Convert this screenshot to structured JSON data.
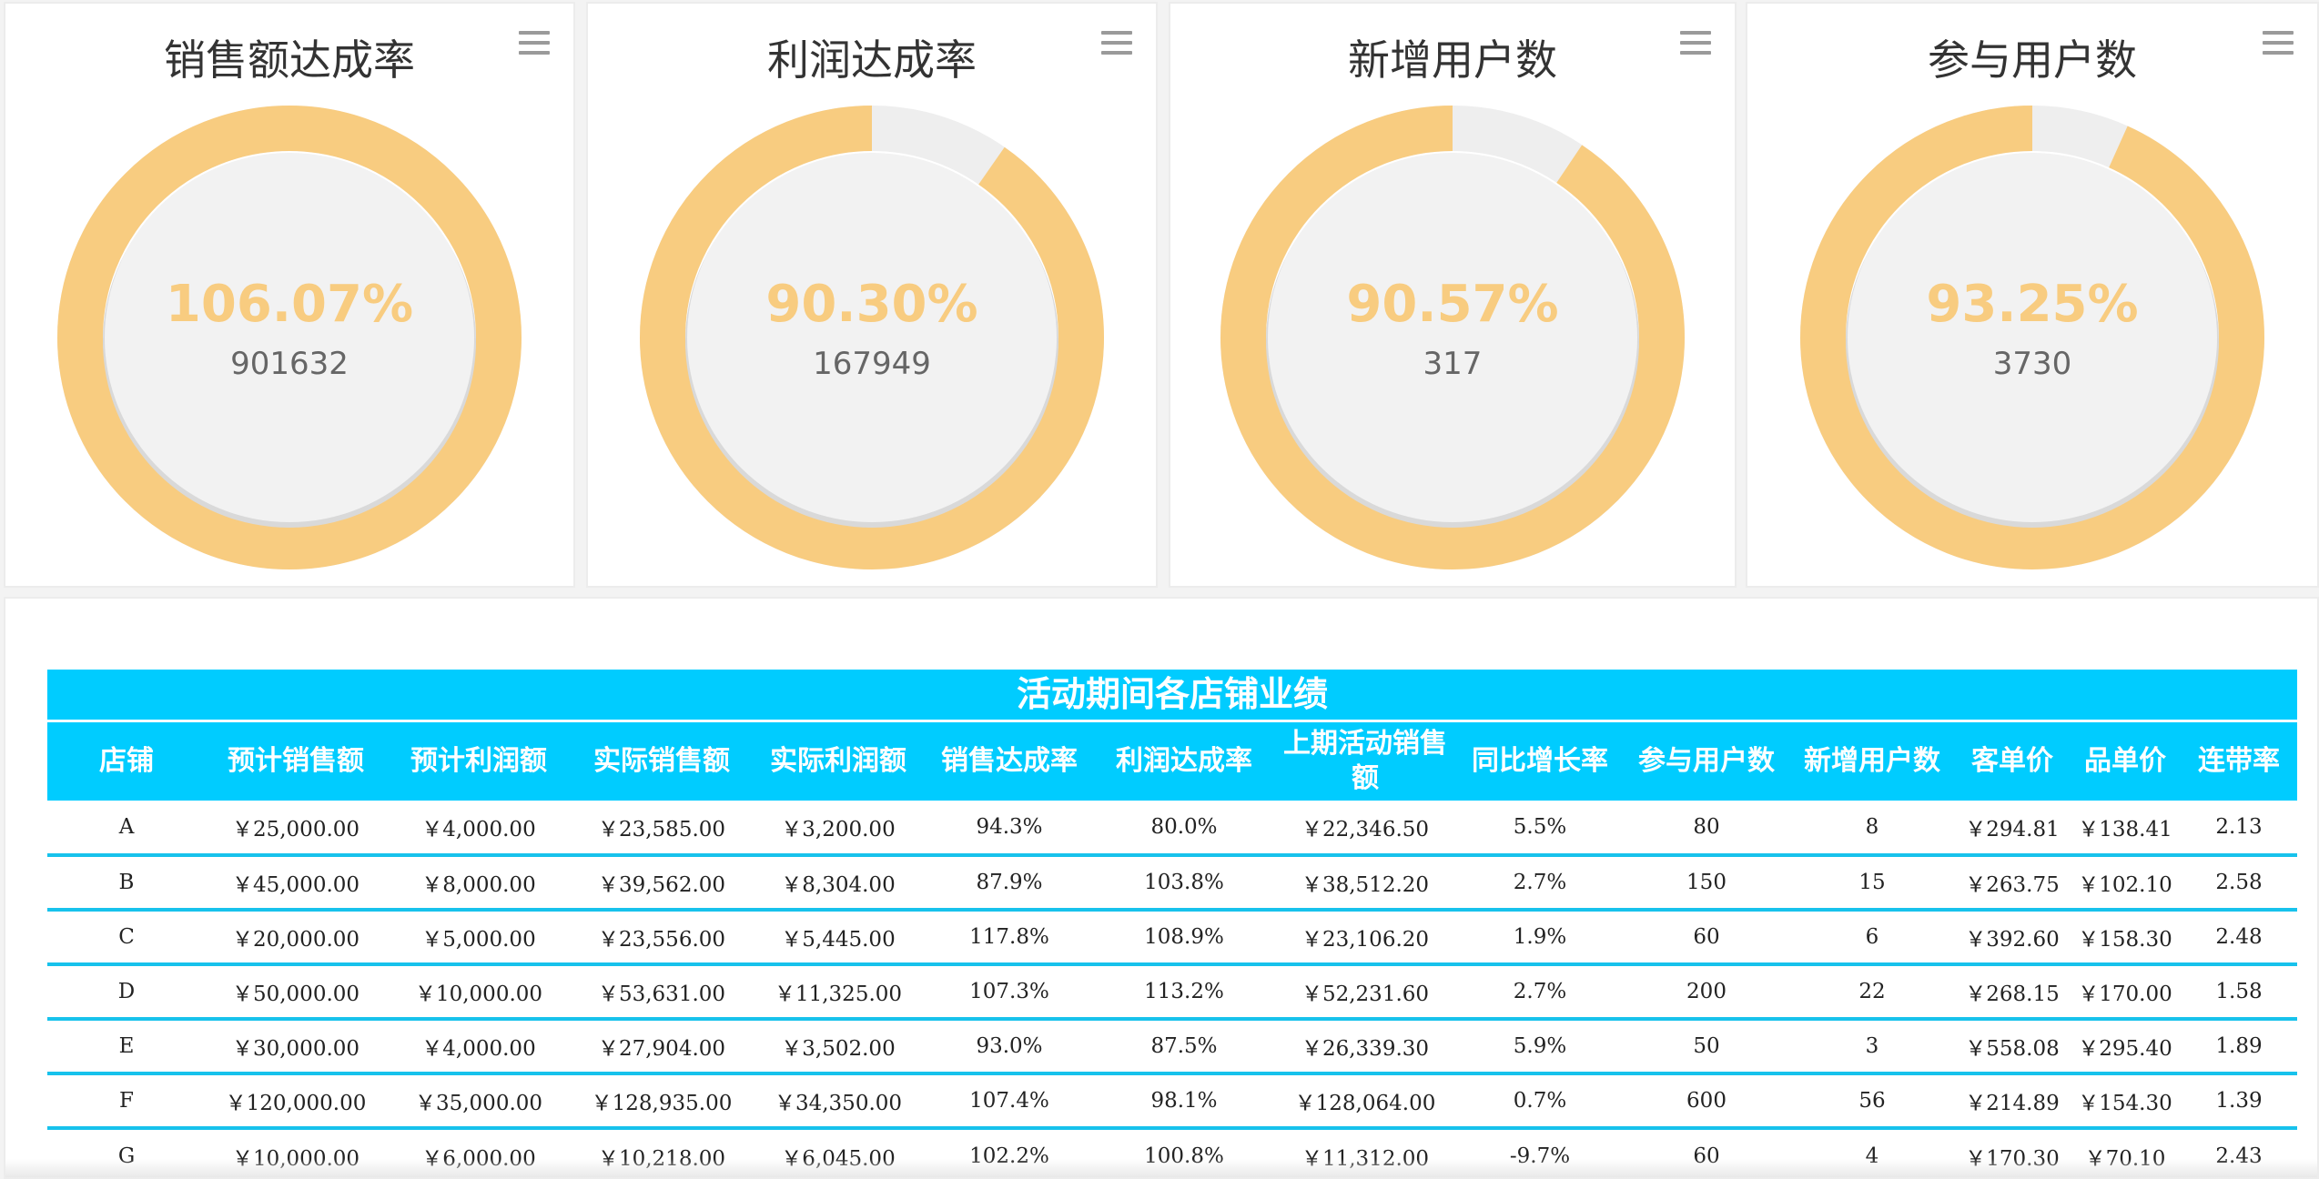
{
  "colors": {
    "accent": "#f8cc80",
    "track": "#eeeeee",
    "header": "#00ccff",
    "divider": "#17c2ec"
  },
  "gauges": [
    {
      "title": "销售额达成率",
      "value_label": "106.07%",
      "sub_value": "901632",
      "percent": 106.07,
      "menu_icon": "hamburger-menu-icon"
    },
    {
      "title": "利润达成率",
      "value_label": "90.30%",
      "sub_value": "167949",
      "percent": 90.3,
      "menu_icon": "hamburger-menu-icon"
    },
    {
      "title": "新增用户数",
      "value_label": "90.57%",
      "sub_value": "317",
      "percent": 90.57,
      "menu_icon": "hamburger-menu-icon"
    },
    {
      "title": "参与用户数",
      "value_label": "93.25%",
      "sub_value": "3730",
      "percent": 93.25,
      "menu_icon": "hamburger-menu-icon"
    }
  ],
  "table": {
    "title": "活动期间各店铺业绩",
    "columns": [
      "店铺",
      "预计销售额",
      "预计利润额",
      "实际销售额",
      "实际利润额",
      "销售达成率",
      "利润达成率",
      "上期活动销售额",
      "同比增长率",
      "参与用户数",
      "新增用户数",
      "客单价",
      "品单价",
      "连带率"
    ],
    "rows": [
      [
        "A",
        "￥25,000.00",
        "￥4,000.00",
        "￥23,585.00",
        "￥3,200.00",
        "94.3%",
        "80.0%",
        "￥22,346.50",
        "5.5%",
        "80",
        "8",
        "￥294.81",
        "￥138.41",
        "2.13"
      ],
      [
        "B",
        "￥45,000.00",
        "￥8,000.00",
        "￥39,562.00",
        "￥8,304.00",
        "87.9%",
        "103.8%",
        "￥38,512.20",
        "2.7%",
        "150",
        "15",
        "￥263.75",
        "￥102.10",
        "2.58"
      ],
      [
        "C",
        "￥20,000.00",
        "￥5,000.00",
        "￥23,556.00",
        "￥5,445.00",
        "117.8%",
        "108.9%",
        "￥23,106.20",
        "1.9%",
        "60",
        "6",
        "￥392.60",
        "￥158.30",
        "2.48"
      ],
      [
        "D",
        "￥50,000.00",
        "￥10,000.00",
        "￥53,631.00",
        "￥11,325.00",
        "107.3%",
        "113.2%",
        "￥52,231.60",
        "2.7%",
        "200",
        "22",
        "￥268.15",
        "￥170.00",
        "1.58"
      ],
      [
        "E",
        "￥30,000.00",
        "￥4,000.00",
        "￥27,904.00",
        "￥3,502.00",
        "93.0%",
        "87.5%",
        "￥26,339.30",
        "5.9%",
        "50",
        "3",
        "￥558.08",
        "￥295.40",
        "1.89"
      ],
      [
        "F",
        "￥120,000.00",
        "￥35,000.00",
        "￥128,935.00",
        "￥34,350.00",
        "107.4%",
        "98.1%",
        "￥128,064.00",
        "0.7%",
        "600",
        "56",
        "￥214.89",
        "￥154.30",
        "1.39"
      ],
      [
        "G",
        "￥10,000.00",
        "￥6,000.00",
        "￥10,218.00",
        "￥6,045.00",
        "102.2%",
        "100.8%",
        "￥11,312.00",
        "-9.7%",
        "60",
        "4",
        "￥170.30",
        "￥70.10",
        "2.43"
      ]
    ]
  }
}
